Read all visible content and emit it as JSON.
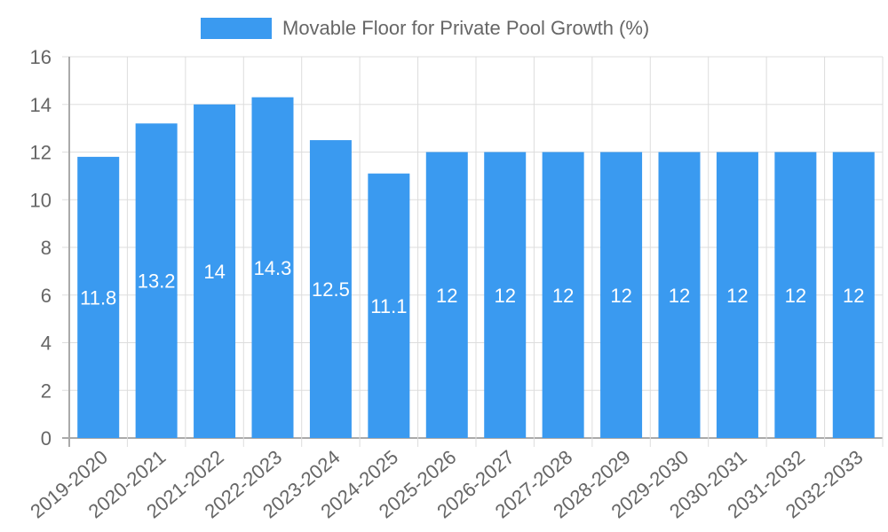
{
  "chart_data": {
    "type": "bar",
    "title": "",
    "legend": [
      "Movable Floor for Private Pool Growth (%)"
    ],
    "legend_position": "top",
    "xlabel": "",
    "ylabel": "",
    "ylim": [
      0,
      16
    ],
    "yticks": [
      0,
      2,
      4,
      6,
      8,
      10,
      12,
      14,
      16
    ],
    "grid": true,
    "categories": [
      "2019-2020",
      "2020-2021",
      "2021-2022",
      "2022-2023",
      "2023-2024",
      "2024-2025",
      "2025-2026",
      "2026-2027",
      "2027-2028",
      "2028-2029",
      "2029-2030",
      "2030-2031",
      "2031-2032",
      "2032-2033"
    ],
    "series": [
      {
        "name": "Movable Floor for Private Pool Growth (%)",
        "color": "#3a9af0",
        "values": [
          11.8,
          13.2,
          14,
          14.3,
          12.5,
          11.1,
          12,
          12,
          12,
          12,
          12,
          12,
          12,
          12
        ]
      }
    ],
    "data_labels": [
      "11.8",
      "13.2",
      "14",
      "14.3",
      "12.5",
      "11.1",
      "12",
      "12",
      "12",
      "12",
      "12",
      "12",
      "12",
      "12"
    ]
  },
  "legend": {
    "label": "Movable Floor for Private Pool Growth (%)"
  }
}
